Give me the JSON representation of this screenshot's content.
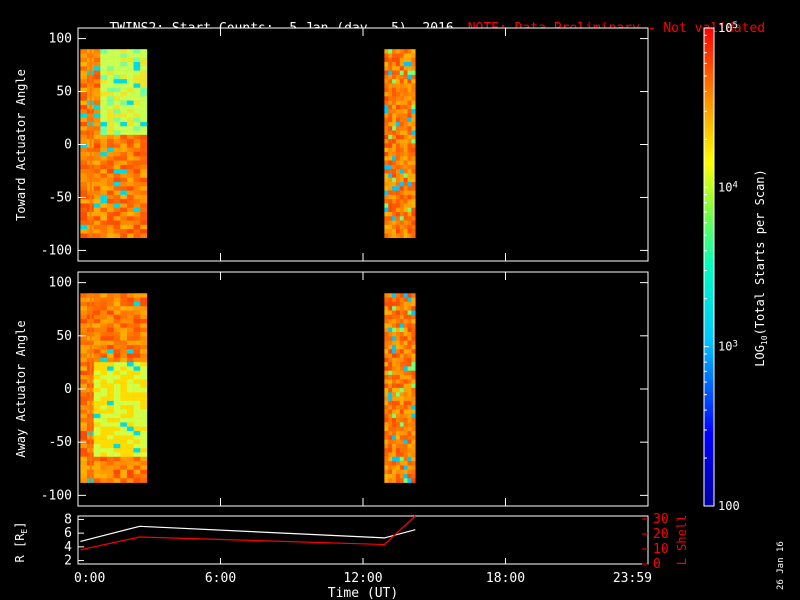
{
  "title": {
    "main": "TWINS2: Start Counts:  5 Jan (day   5), 2016",
    "note": "NOTE: Data Preliminary - Not validated",
    "note_color": "#ff0000"
  },
  "side_date": "26 Jan 16",
  "chart_data": [
    {
      "type": "heatmap",
      "ylabel": "Toward Actuator Angle",
      "ylim": [
        -110,
        110
      ],
      "yticks": [
        "100",
        "50",
        "0",
        "-50",
        "-100"
      ],
      "ytick_values": [
        100,
        50,
        0,
        -50,
        -100
      ],
      "xlim_hours": [
        0,
        24
      ],
      "data_blocks_hours": [
        [
          0.1,
          2.9
        ],
        [
          12.9,
          14.2
        ]
      ],
      "angle_range": [
        -88,
        90
      ]
    },
    {
      "type": "heatmap",
      "ylabel": "Away Actuator Angle",
      "ylim": [
        -110,
        110
      ],
      "yticks": [
        "100",
        "50",
        "0",
        "-50",
        "-100"
      ],
      "ytick_values": [
        100,
        50,
        0,
        -50,
        -100
      ],
      "xlim_hours": [
        0,
        24
      ],
      "data_blocks_hours": [
        [
          0.1,
          2.9
        ],
        [
          12.9,
          14.2
        ]
      ],
      "angle_range": [
        -88,
        90
      ]
    },
    {
      "type": "line",
      "ylabel": "R [R",
      "ylabel_sub": "E",
      "ylabel_end": "]",
      "y2label": "L Shell",
      "yticks": [
        "8",
        "6",
        "4",
        "2"
      ],
      "ytick_values": [
        8,
        6,
        4,
        2
      ],
      "ylim": [
        1.5,
        8.5
      ],
      "y2ticks": [
        "30",
        "20",
        "10",
        "0"
      ],
      "y2tick_values": [
        30,
        20,
        10,
        0
      ],
      "y2lim": [
        0,
        32
      ],
      "xlabel": "Time (UT)",
      "xticks": [
        "0:00",
        "6:00",
        "12:00",
        "18:00",
        "23:59"
      ],
      "xtick_values": [
        0,
        6,
        12,
        18,
        24
      ],
      "xlim": [
        0,
        24
      ],
      "series": [
        {
          "name": "R",
          "color": "#ffffff",
          "x": [
            0.1,
            2.6,
            12.9,
            14.2
          ],
          "y": [
            4.8,
            7.0,
            5.3,
            6.5
          ]
        },
        {
          "name": "L Shell",
          "color": "#ff0000",
          "x": [
            0.1,
            2.6,
            12.9,
            14.2
          ],
          "y2": [
            9.5,
            18,
            13,
            32
          ]
        }
      ]
    },
    {
      "type": "colorbar",
      "label_pre": "LOG",
      "label_sub": "10",
      "label_post": "(Total Starts per Scan)",
      "scale": "log",
      "range": [
        100,
        100000
      ],
      "ticks": [
        {
          "base": "10",
          "exp": "5",
          "value": 100000
        },
        {
          "base": "10",
          "exp": "4",
          "value": 10000
        },
        {
          "base": "10",
          "exp": "3",
          "value": 1000
        },
        {
          "base": "100",
          "exp": "",
          "value": 100
        }
      ]
    }
  ]
}
